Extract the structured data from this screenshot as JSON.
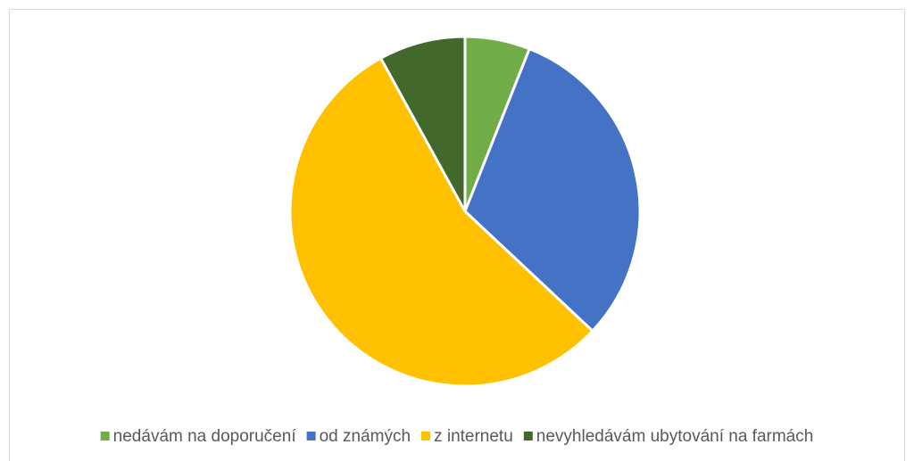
{
  "chart_data": {
    "type": "pie",
    "categories": [
      "nedávám na doporučení",
      "od známých",
      "z internetu",
      "nevyhledávám ubytování na farmách"
    ],
    "values": [
      6,
      31,
      55,
      8
    ],
    "colors": [
      "#70ad47",
      "#4472c4",
      "#ffc000",
      "#43682b"
    ],
    "legend": "bottom"
  }
}
